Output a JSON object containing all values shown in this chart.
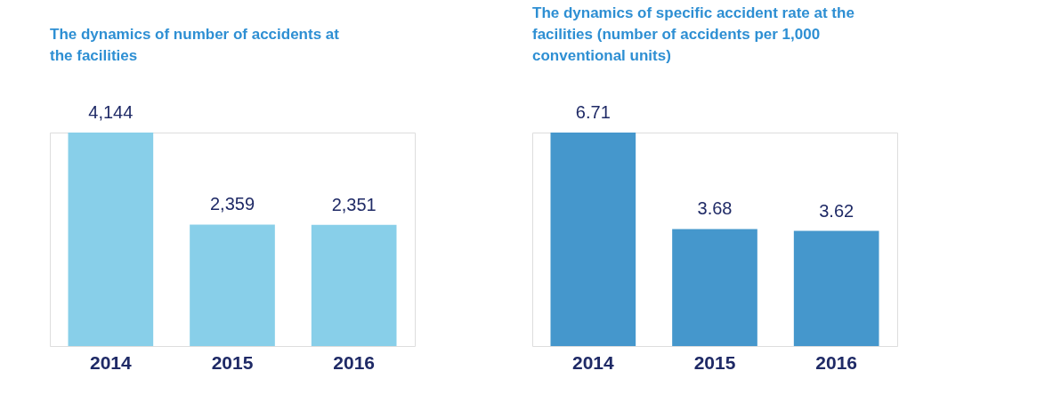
{
  "chart_data": [
    {
      "type": "bar",
      "title": "The dynamics of number of accidents at the facilities",
      "categories": [
        "2014",
        "2015",
        "2016"
      ],
      "values": [
        4144,
        2359,
        2351
      ],
      "value_labels": [
        "4,144",
        "2,359",
        "2,351"
      ],
      "color": "#88cfe9",
      "grid": false,
      "tick_labels": "x"
    },
    {
      "type": "bar",
      "title": "The dynamics of specific accident rate at the facilities (number of accidents per 1,000 conventional units)",
      "categories": [
        "2014",
        "2015",
        "2016"
      ],
      "values": [
        6.71,
        3.68,
        3.62
      ],
      "data_labels": true,
      "color": "#4597cc",
      "grid": false,
      "tick_labels": "x"
    }
  ]
}
